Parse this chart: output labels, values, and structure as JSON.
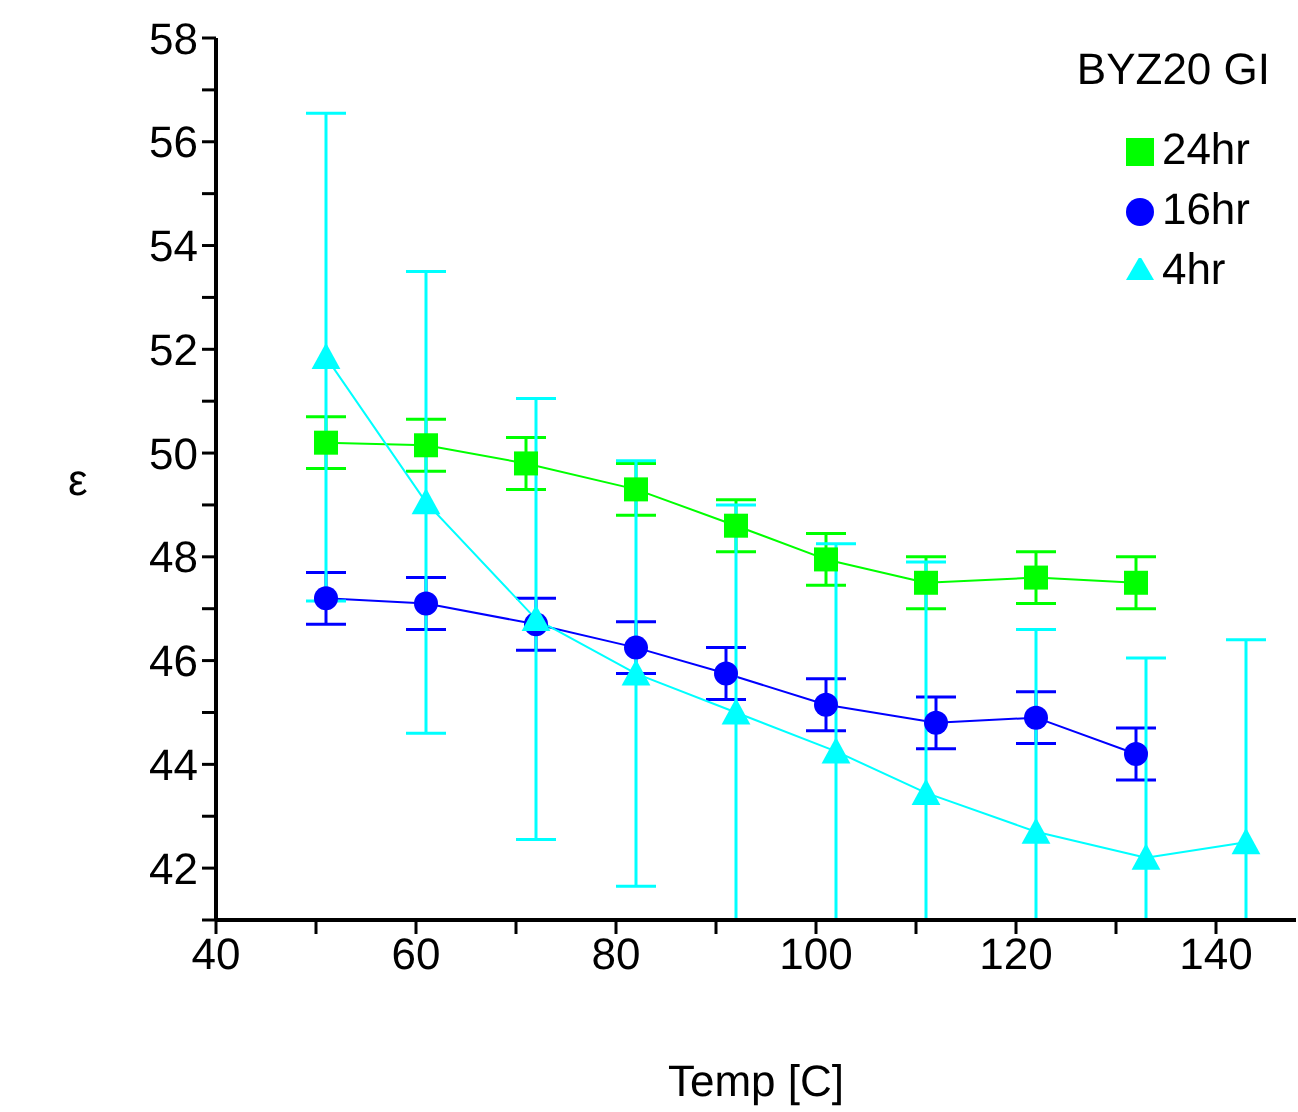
{
  "chart_data": {
    "type": "line",
    "xlabel": "Temp [C]",
    "ylabel": "ε",
    "legend_title": "BYZ20 GI",
    "legend": "top right",
    "grid": false,
    "line_style": "solid",
    "xlim": [
      40,
      148
    ],
    "xticks": [
      40,
      {
        "value": 50,
        "label": null
      },
      60,
      {
        "value": 70,
        "label": null
      },
      80,
      {
        "value": 90,
        "label": null
      },
      100,
      {
        "value": 110,
        "label": null
      },
      120,
      {
        "value": 130,
        "label": null
      },
      140
    ],
    "ylim": [
      41,
      58
    ],
    "yticks": [
      {
        "value": 41,
        "label": null
      },
      42,
      {
        "value": 43,
        "label": null
      },
      44,
      {
        "value": 45,
        "label": null
      },
      46,
      {
        "value": 47,
        "label": null
      },
      48,
      {
        "value": 49,
        "label": null
      },
      50,
      {
        "value": 51,
        "label": null
      },
      52,
      {
        "value": 53,
        "label": null
      },
      54,
      {
        "value": 55,
        "label": null
      },
      56,
      {
        "value": 57,
        "label": null
      },
      58
    ],
    "series": [
      {
        "name": "24hr",
        "color": "#00ff00",
        "marker": "square",
        "x": [
          51,
          61,
          71,
          82,
          92,
          101,
          111,
          122,
          132
        ],
        "values": [
          50.2,
          50.15,
          49.8,
          49.3,
          48.6,
          47.95,
          47.5,
          47.6,
          47.5
        ],
        "errors": [
          0.5,
          0.5,
          0.5,
          0.5,
          0.5,
          0.5,
          0.5,
          0.5,
          0.5
        ]
      },
      {
        "name": "16hr",
        "color": "#0000ff",
        "marker": "circle",
        "x": [
          51,
          61,
          72,
          82,
          91,
          101,
          112,
          122,
          132
        ],
        "values": [
          47.2,
          47.1,
          46.7,
          46.25,
          45.75,
          45.15,
          44.8,
          44.9,
          44.2
        ],
        "errors": [
          0.5,
          0.5,
          0.5,
          0.5,
          0.5,
          0.5,
          0.5,
          0.5,
          0.5
        ]
      },
      {
        "name": "4hr",
        "color": "#00ffff",
        "marker": "triangle",
        "x": [
          51,
          61,
          72,
          82,
          92,
          102,
          111,
          122,
          133,
          143
        ],
        "values": [
          51.85,
          49.05,
          46.8,
          45.75,
          45.0,
          44.25,
          43.45,
          42.7,
          42.2,
          42.5
        ],
        "errors": [
          4.7,
          4.45,
          4.25,
          4.1,
          4.0,
          [
            41,
            48.25
          ],
          [
            41,
            47.9
          ],
          [
            41,
            46.6
          ],
          [
            41,
            46.05
          ],
          [
            41,
            46.4
          ]
        ]
      }
    ]
  }
}
